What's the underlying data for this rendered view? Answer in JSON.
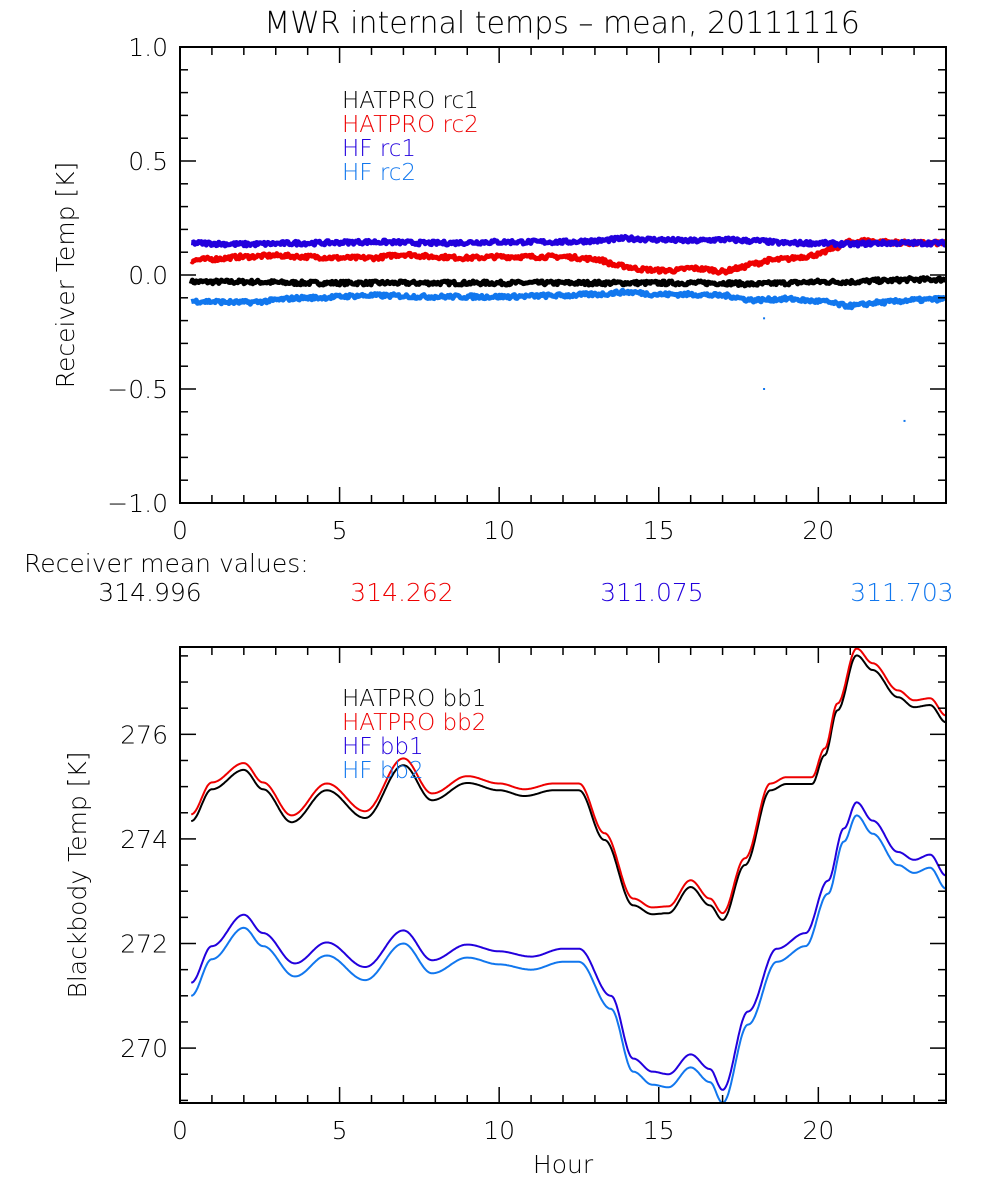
{
  "figure_title": "MWR internal temps – mean, 20111116",
  "mean_values": {
    "label": "Receiver mean values:",
    "values": [
      {
        "text": "314.996",
        "color": "#000000"
      },
      {
        "text": "314.262",
        "color": "#ee0000"
      },
      {
        "text": "311.075",
        "color": "#2200dd"
      },
      {
        "text": "311.703",
        "color": "#1177ee"
      }
    ]
  },
  "chart_data": [
    {
      "type": "line",
      "title": "MWR internal temps – mean, 20111116",
      "xlabel": "",
      "ylabel": "Receiver Temp [K]",
      "xlim": [
        0,
        24
      ],
      "ylim": [
        -1.0,
        1.0
      ],
      "xticks": [
        0,
        5,
        10,
        15,
        20
      ],
      "xtick_labels": [
        "0",
        "5",
        "10",
        "15",
        "20"
      ],
      "xminor_step": 1,
      "yticks": [
        -1.0,
        -0.5,
        0.0,
        0.5,
        1.0
      ],
      "ytick_labels": [
        "−1.0",
        "−0.5",
        "0.0",
        "0.5",
        "1.0"
      ],
      "yminor_step": 0.1,
      "grid": false,
      "legend_position": "top-left-inside",
      "noisy": true,
      "series": [
        {
          "name": "HATPRO rc1",
          "color": "#000000",
          "x": [
            0.35,
            2,
            4,
            6,
            8,
            10,
            12,
            14,
            16,
            17,
            18,
            19,
            20,
            21,
            22,
            23,
            24
          ],
          "y": [
            -0.03,
            -0.03,
            -0.035,
            -0.035,
            -0.035,
            -0.035,
            -0.035,
            -0.035,
            -0.035,
            -0.035,
            -0.04,
            -0.035,
            -0.03,
            -0.03,
            -0.025,
            -0.02,
            -0.02
          ]
        },
        {
          "name": "HATPRO rc2",
          "color": "#ee0000",
          "x": [
            0.35,
            1,
            2,
            3,
            4,
            5,
            6,
            7,
            8,
            9,
            10,
            11,
            12,
            13,
            13.8,
            14.5,
            15,
            15.5,
            16,
            16.5,
            17,
            17.5,
            18,
            18.5,
            19,
            19.5,
            20,
            20.5,
            21,
            21.5,
            22,
            23,
            24
          ],
          "y": [
            0.065,
            0.07,
            0.08,
            0.085,
            0.08,
            0.075,
            0.075,
            0.09,
            0.08,
            0.075,
            0.08,
            0.08,
            0.08,
            0.07,
            0.04,
            0.025,
            0.02,
            0.02,
            0.03,
            0.025,
            0.015,
            0.03,
            0.05,
            0.065,
            0.07,
            0.08,
            0.09,
            0.12,
            0.145,
            0.15,
            0.145,
            0.14,
            0.14
          ]
        },
        {
          "name": "HF rc1",
          "color": "#2200dd",
          "x": [
            0.35,
            2,
            4,
            6,
            8,
            10,
            12,
            13,
            14,
            15,
            16,
            17,
            18,
            19,
            20,
            21,
            22,
            23,
            24
          ],
          "y": [
            0.14,
            0.135,
            0.14,
            0.145,
            0.14,
            0.145,
            0.145,
            0.15,
            0.16,
            0.155,
            0.15,
            0.155,
            0.15,
            0.14,
            0.14,
            0.135,
            0.14,
            0.14,
            0.14
          ]
        },
        {
          "name": "HF rc2",
          "color": "#1177ee",
          "x": [
            0.35,
            2,
            4,
            6,
            8,
            10,
            12,
            13,
            14,
            15,
            16,
            17,
            18,
            19,
            20,
            21,
            22,
            23,
            24
          ],
          "y": [
            -0.115,
            -0.12,
            -0.1,
            -0.09,
            -0.095,
            -0.095,
            -0.09,
            -0.085,
            -0.075,
            -0.085,
            -0.085,
            -0.09,
            -0.11,
            -0.105,
            -0.115,
            -0.135,
            -0.12,
            -0.11,
            -0.105
          ]
        }
      ],
      "outliers": [
        {
          "series": "HF rc2",
          "x": 18.3,
          "y": -0.19
        },
        {
          "series": "HF rc2",
          "x": 18.3,
          "y": -0.5
        },
        {
          "series": "HF rc2",
          "x": 22.7,
          "y": -0.64
        }
      ]
    },
    {
      "type": "line",
      "title": "",
      "xlabel": "Hour",
      "ylabel": "Blackbody Temp [K]",
      "xlim": [
        0,
        24
      ],
      "ylim": [
        268.95,
        277.67
      ],
      "xticks": [
        0,
        5,
        10,
        15,
        20
      ],
      "xtick_labels": [
        "0",
        "5",
        "10",
        "15",
        "20"
      ],
      "xminor_step": 1,
      "yticks": [
        270,
        272,
        274,
        276
      ],
      "ytick_labels": [
        "270",
        "272",
        "274",
        "276"
      ],
      "yminor_step": 0.5,
      "grid": false,
      "legend_position": "top-left-inside",
      "noisy": false,
      "series": [
        {
          "name": "HATPRO bb1",
          "color": "#000000",
          "x": [
            0.35,
            1.0,
            2.0,
            2.6,
            3.5,
            4.6,
            5.8,
            7.0,
            7.9,
            9.0,
            10.0,
            10.8,
            11.7,
            12.5,
            13.3,
            14.2,
            14.8,
            15.3,
            16.0,
            16.6,
            17.0,
            17.7,
            18.5,
            19.0,
            19.8,
            20.2,
            20.6,
            21.2,
            21.7,
            22.5,
            23.0,
            23.5,
            24.0
          ],
          "y": [
            274.34,
            274.95,
            275.32,
            274.95,
            274.32,
            274.93,
            274.4,
            275.41,
            274.74,
            275.07,
            274.93,
            274.82,
            274.93,
            274.93,
            273.98,
            272.73,
            272.56,
            272.58,
            273.08,
            272.73,
            272.45,
            273.5,
            274.93,
            275.05,
            275.05,
            275.6,
            276.46,
            277.51,
            277.23,
            276.71,
            276.52,
            276.56,
            276.23
          ]
        },
        {
          "name": "HATPRO bb2",
          "color": "#ee0000",
          "x": [
            0.35,
            1.0,
            2.0,
            2.6,
            3.5,
            4.6,
            5.8,
            7.0,
            7.9,
            9.0,
            10.0,
            10.8,
            11.7,
            12.5,
            13.3,
            14.2,
            14.8,
            15.3,
            16.0,
            16.6,
            17.0,
            17.7,
            18.5,
            19.0,
            19.8,
            20.2,
            20.6,
            21.2,
            21.7,
            22.5,
            23.0,
            23.5,
            24.0
          ],
          "y": [
            274.47,
            275.08,
            275.45,
            275.08,
            274.45,
            275.06,
            274.53,
            275.54,
            274.87,
            275.2,
            275.06,
            274.95,
            275.06,
            275.06,
            274.11,
            272.86,
            272.69,
            272.71,
            273.21,
            272.86,
            272.58,
            273.63,
            275.06,
            275.18,
            275.18,
            275.73,
            276.59,
            277.64,
            277.36,
            276.84,
            276.65,
            276.69,
            276.36
          ]
        },
        {
          "name": "HF bb1",
          "color": "#2200dd",
          "x": [
            0.35,
            1.0,
            2.0,
            2.6,
            3.6,
            4.6,
            5.8,
            7.0,
            7.9,
            9.0,
            10.0,
            11.0,
            12.0,
            12.5,
            13.5,
            14.2,
            14.8,
            15.3,
            16.0,
            16.6,
            17.0,
            17.8,
            18.7,
            19.6,
            20.3,
            20.8,
            21.2,
            21.7,
            22.5,
            23.0,
            23.5,
            24.0
          ],
          "y": [
            271.25,
            271.95,
            272.55,
            272.2,
            271.62,
            272.02,
            271.55,
            272.25,
            271.68,
            271.98,
            271.85,
            271.75,
            271.9,
            271.9,
            271.0,
            269.8,
            269.55,
            269.5,
            269.88,
            269.6,
            269.2,
            270.7,
            271.9,
            272.2,
            273.2,
            274.2,
            274.7,
            274.35,
            273.75,
            273.6,
            273.7,
            273.3
          ]
        },
        {
          "name": "HF bb2",
          "color": "#1177ee",
          "x": [
            0.35,
            1.0,
            2.0,
            2.6,
            3.6,
            4.6,
            5.8,
            7.0,
            7.9,
            9.0,
            10.0,
            11.0,
            12.0,
            12.5,
            13.5,
            14.2,
            14.8,
            15.3,
            16.0,
            16.6,
            17.0,
            17.8,
            18.7,
            19.6,
            20.3,
            20.8,
            21.2,
            21.7,
            22.5,
            23.0,
            23.5,
            24.0
          ],
          "y": [
            271.0,
            271.7,
            272.3,
            271.95,
            271.37,
            271.77,
            271.3,
            272.0,
            271.43,
            271.73,
            271.6,
            271.5,
            271.65,
            271.65,
            270.75,
            269.55,
            269.3,
            269.25,
            269.63,
            269.35,
            268.95,
            270.45,
            271.65,
            271.95,
            272.95,
            273.95,
            274.45,
            274.1,
            273.5,
            273.35,
            273.45,
            273.05
          ]
        }
      ]
    }
  ]
}
